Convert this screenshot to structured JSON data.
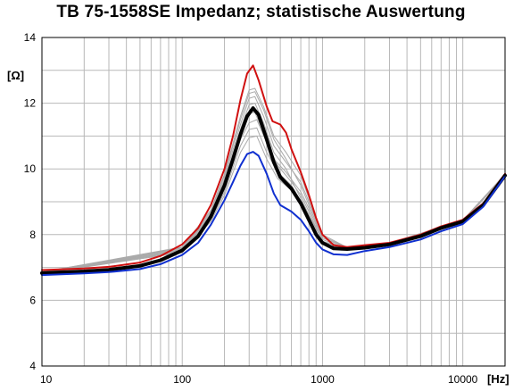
{
  "chart_data": {
    "type": "line",
    "title": "TB 75-1558SE Impedanz; statistische Auswertung",
    "ylabel": "[Ω]",
    "xlabel": "[Hz]",
    "x_scale": "log",
    "xlim": [
      10,
      20000
    ],
    "ylim": [
      4,
      14
    ],
    "grid": true,
    "yticks": [
      "4",
      "6",
      "8",
      "10",
      "12",
      "14"
    ],
    "xticks": [
      {
        "value": 10,
        "label": "10"
      },
      {
        "value": 100,
        "label": "100"
      },
      {
        "value": 1000,
        "label": "1000"
      },
      {
        "value": 10000,
        "label": "10000"
      }
    ],
    "series": [
      {
        "role": "max",
        "color": "#d01010",
        "width": 2,
        "points": [
          [
            10,
            6.92
          ],
          [
            20,
            6.97
          ],
          [
            30,
            7.02
          ],
          [
            50,
            7.15
          ],
          [
            70,
            7.35
          ],
          [
            100,
            7.7
          ],
          [
            130,
            8.2
          ],
          [
            160,
            8.9
          ],
          [
            200,
            10.0
          ],
          [
            230,
            11.0
          ],
          [
            260,
            12.1
          ],
          [
            290,
            12.9
          ],
          [
            320,
            13.15
          ],
          [
            350,
            12.7
          ],
          [
            400,
            11.9
          ],
          [
            440,
            11.45
          ],
          [
            500,
            11.35
          ],
          [
            550,
            11.1
          ],
          [
            600,
            10.6
          ],
          [
            700,
            9.9
          ],
          [
            800,
            9.2
          ],
          [
            900,
            8.5
          ],
          [
            1000,
            8.0
          ],
          [
            1200,
            7.68
          ],
          [
            1500,
            7.62
          ],
          [
            2000,
            7.68
          ],
          [
            3000,
            7.75
          ],
          [
            5000,
            8.0
          ],
          [
            7000,
            8.25
          ],
          [
            10000,
            8.45
          ],
          [
            14000,
            8.95
          ],
          [
            20000,
            9.85
          ]
        ]
      },
      {
        "role": "mean",
        "color": "#000000",
        "width": 4,
        "points": [
          [
            10,
            6.83
          ],
          [
            20,
            6.88
          ],
          [
            30,
            6.93
          ],
          [
            50,
            7.05
          ],
          [
            70,
            7.22
          ],
          [
            100,
            7.52
          ],
          [
            130,
            7.95
          ],
          [
            160,
            8.55
          ],
          [
            200,
            9.5
          ],
          [
            230,
            10.3
          ],
          [
            260,
            11.05
          ],
          [
            290,
            11.6
          ],
          [
            320,
            11.85
          ],
          [
            350,
            11.65
          ],
          [
            400,
            10.9
          ],
          [
            450,
            10.2
          ],
          [
            500,
            9.75
          ],
          [
            600,
            9.4
          ],
          [
            700,
            8.95
          ],
          [
            800,
            8.45
          ],
          [
            900,
            8.0
          ],
          [
            1000,
            7.75
          ],
          [
            1200,
            7.58
          ],
          [
            1500,
            7.56
          ],
          [
            2000,
            7.6
          ],
          [
            3000,
            7.7
          ],
          [
            5000,
            7.95
          ],
          [
            7000,
            8.2
          ],
          [
            10000,
            8.4
          ],
          [
            14000,
            8.9
          ],
          [
            20000,
            9.8
          ]
        ]
      },
      {
        "role": "min",
        "color": "#1030d0",
        "width": 2,
        "points": [
          [
            10,
            6.77
          ],
          [
            20,
            6.82
          ],
          [
            30,
            6.86
          ],
          [
            50,
            6.95
          ],
          [
            70,
            7.1
          ],
          [
            100,
            7.38
          ],
          [
            130,
            7.75
          ],
          [
            160,
            8.3
          ],
          [
            200,
            9.05
          ],
          [
            230,
            9.6
          ],
          [
            260,
            10.1
          ],
          [
            290,
            10.45
          ],
          [
            320,
            10.52
          ],
          [
            350,
            10.4
          ],
          [
            400,
            9.85
          ],
          [
            450,
            9.25
          ],
          [
            500,
            8.9
          ],
          [
            600,
            8.7
          ],
          [
            700,
            8.45
          ],
          [
            800,
            8.1
          ],
          [
            900,
            7.75
          ],
          [
            1000,
            7.55
          ],
          [
            1200,
            7.4
          ],
          [
            1500,
            7.38
          ],
          [
            2000,
            7.5
          ],
          [
            3000,
            7.62
          ],
          [
            5000,
            7.85
          ],
          [
            7000,
            8.1
          ],
          [
            10000,
            8.32
          ],
          [
            14000,
            8.85
          ],
          [
            20000,
            9.78
          ]
        ]
      }
    ],
    "samples": [
      {
        "color": "#aaaaaa",
        "points": [
          [
            10,
            6.85
          ],
          [
            100,
            7.55
          ],
          [
            160,
            8.6
          ],
          [
            200,
            9.6
          ],
          [
            260,
            11.2
          ],
          [
            300,
            11.95
          ],
          [
            330,
            12.0
          ],
          [
            380,
            11.4
          ],
          [
            450,
            10.5
          ],
          [
            550,
            10.0
          ],
          [
            700,
            9.1
          ],
          [
            800,
            8.6
          ],
          [
            1000,
            7.8
          ],
          [
            1500,
            7.58
          ],
          [
            3000,
            7.72
          ],
          [
            10000,
            8.42
          ],
          [
            20000,
            9.82
          ]
        ]
      },
      {
        "color": "#aaaaaa",
        "points": [
          [
            10,
            6.84
          ],
          [
            100,
            7.5
          ],
          [
            160,
            8.5
          ],
          [
            200,
            9.4
          ],
          [
            260,
            10.9
          ],
          [
            300,
            11.4
          ],
          [
            340,
            11.5
          ],
          [
            400,
            10.8
          ],
          [
            480,
            10.1
          ],
          [
            600,
            9.6
          ],
          [
            700,
            9.2
          ],
          [
            800,
            8.7
          ],
          [
            1000,
            7.78
          ],
          [
            1500,
            7.57
          ],
          [
            3000,
            7.71
          ],
          [
            10000,
            8.41
          ],
          [
            20000,
            9.81
          ]
        ]
      },
      {
        "color": "#aaaaaa",
        "points": [
          [
            10,
            6.86
          ],
          [
            100,
            7.6
          ],
          [
            160,
            8.7
          ],
          [
            200,
            9.8
          ],
          [
            260,
            11.5
          ],
          [
            300,
            12.3
          ],
          [
            330,
            12.35
          ],
          [
            380,
            11.8
          ],
          [
            450,
            10.9
          ],
          [
            550,
            10.3
          ],
          [
            700,
            9.5
          ],
          [
            800,
            8.9
          ],
          [
            1000,
            7.9
          ],
          [
            1500,
            7.6
          ],
          [
            3000,
            7.73
          ],
          [
            10000,
            8.43
          ],
          [
            20000,
            9.83
          ]
        ]
      },
      {
        "color": "#aaaaaa",
        "points": [
          [
            10,
            6.83
          ],
          [
            100,
            7.48
          ],
          [
            160,
            8.45
          ],
          [
            200,
            9.3
          ],
          [
            260,
            10.7
          ],
          [
            300,
            11.2
          ],
          [
            340,
            11.25
          ],
          [
            400,
            10.5
          ],
          [
            480,
            9.9
          ],
          [
            600,
            9.5
          ],
          [
            700,
            9.0
          ],
          [
            800,
            8.5
          ],
          [
            1000,
            7.72
          ],
          [
            1500,
            7.56
          ],
          [
            3000,
            7.7
          ],
          [
            10000,
            8.4
          ],
          [
            20000,
            9.8
          ]
        ]
      },
      {
        "color": "#aaaaaa",
        "points": [
          [
            10,
            6.85
          ],
          [
            100,
            7.58
          ],
          [
            160,
            8.65
          ],
          [
            200,
            9.7
          ],
          [
            260,
            11.35
          ],
          [
            300,
            12.15
          ],
          [
            330,
            12.2
          ],
          [
            380,
            11.6
          ],
          [
            450,
            10.7
          ],
          [
            550,
            10.2
          ],
          [
            700,
            9.6
          ],
          [
            800,
            9.0
          ],
          [
            1000,
            7.95
          ],
          [
            1500,
            7.6
          ],
          [
            3000,
            7.72
          ],
          [
            10000,
            8.42
          ],
          [
            20000,
            9.82
          ]
        ]
      },
      {
        "color": "#aaaaaa",
        "points": [
          [
            10,
            6.84
          ],
          [
            100,
            7.53
          ],
          [
            160,
            8.55
          ],
          [
            200,
            9.5
          ],
          [
            260,
            11.0
          ],
          [
            300,
            11.7
          ],
          [
            330,
            11.72
          ],
          [
            380,
            11.1
          ],
          [
            450,
            10.3
          ],
          [
            550,
            9.9
          ],
          [
            700,
            9.3
          ],
          [
            800,
            8.8
          ],
          [
            1000,
            7.85
          ],
          [
            1500,
            7.57
          ],
          [
            3000,
            7.71
          ],
          [
            10000,
            8.41
          ],
          [
            20000,
            9.81
          ]
        ]
      },
      {
        "color": "#aaaaaa",
        "points": [
          [
            10,
            6.86
          ],
          [
            100,
            7.62
          ],
          [
            160,
            8.75
          ],
          [
            200,
            9.85
          ],
          [
            260,
            11.6
          ],
          [
            300,
            12.4
          ],
          [
            330,
            12.45
          ],
          [
            380,
            11.9
          ],
          [
            450,
            11.0
          ],
          [
            550,
            10.5
          ],
          [
            700,
            9.8
          ],
          [
            800,
            9.1
          ],
          [
            1000,
            8.0
          ],
          [
            1500,
            7.61
          ],
          [
            3000,
            7.74
          ],
          [
            10000,
            8.44
          ],
          [
            20000,
            9.84
          ]
        ]
      },
      {
        "color": "#aaaaaa",
        "points": [
          [
            10,
            6.82
          ],
          [
            100,
            7.45
          ],
          [
            160,
            8.4
          ],
          [
            200,
            9.2
          ],
          [
            260,
            10.5
          ],
          [
            300,
            10.95
          ],
          [
            340,
            11.0
          ],
          [
            400,
            10.3
          ],
          [
            480,
            9.7
          ],
          [
            600,
            9.35
          ],
          [
            700,
            8.9
          ],
          [
            800,
            8.4
          ],
          [
            1000,
            7.7
          ],
          [
            1500,
            7.55
          ],
          [
            3000,
            7.69
          ],
          [
            10000,
            8.39
          ],
          [
            20000,
            9.79
          ]
        ]
      }
    ]
  }
}
